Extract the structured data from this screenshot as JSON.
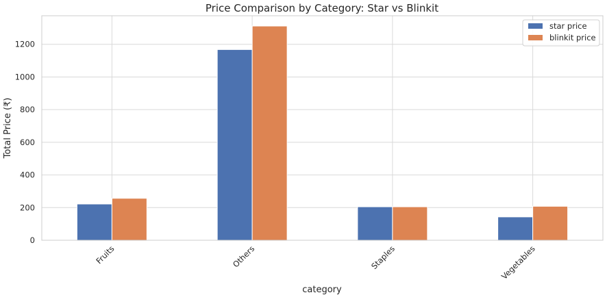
{
  "chart_data": {
    "type": "bar",
    "title": "Price Comparison by Category: Star vs Blinkit",
    "xlabel": "category",
    "ylabel": "Total Price (₹)",
    "categories": [
      "Fruits",
      "Others",
      "Staples",
      "Vegetables"
    ],
    "series": [
      {
        "name": "star price",
        "values": [
          222,
          1168,
          205,
          143
        ],
        "color": "#4c72b0"
      },
      {
        "name": "blinkit price",
        "values": [
          257,
          1312,
          205,
          208
        ],
        "color": "#dd8452"
      }
    ],
    "ylim": [
      0,
      1375
    ],
    "yticks": [
      0,
      200,
      400,
      600,
      800,
      1000,
      1200
    ],
    "grid": true,
    "legend": "top-right"
  }
}
